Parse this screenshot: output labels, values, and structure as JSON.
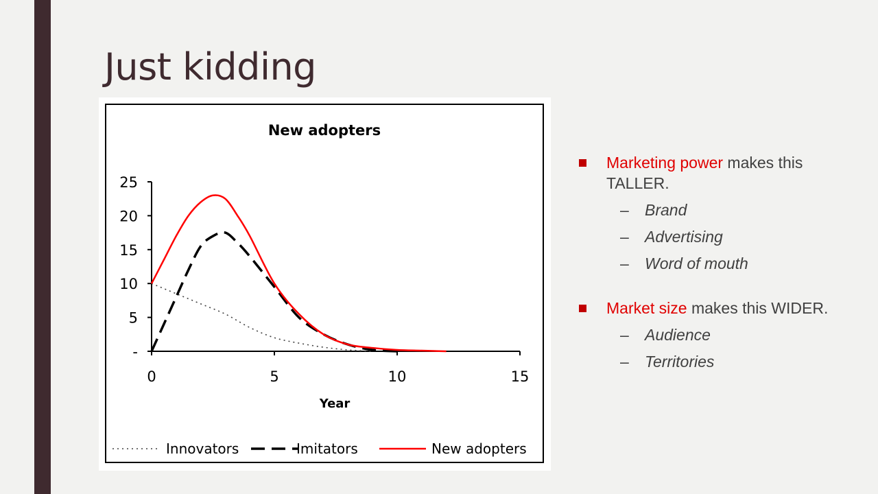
{
  "slide": {
    "title": "Just kidding"
  },
  "chart_data": {
    "type": "line",
    "title": "New adopters",
    "xlabel": "Year",
    "ylabel": "",
    "xlim": [
      0,
      15
    ],
    "ylim": [
      0,
      25
    ],
    "x_ticks": [
      "0",
      "5",
      "10",
      "15"
    ],
    "y_ticks": [
      "-",
      "5",
      "10",
      "15",
      "20",
      "25"
    ],
    "grid": false,
    "legend": "bottom",
    "series": [
      {
        "name": "Innovators",
        "style": "dotted",
        "color": "#404040",
        "x": [
          0,
          1,
          2,
          3,
          4,
          5,
          6,
          7,
          8,
          9
        ],
        "y": [
          10,
          8.5,
          7,
          5.5,
          3.5,
          2,
          1.2,
          0.6,
          0.2,
          0
        ]
      },
      {
        "name": "Imitators",
        "style": "dashed",
        "color": "#000000",
        "x": [
          0,
          0.5,
          1,
          1.5,
          2,
          2.5,
          3,
          3.5,
          4,
          5,
          6,
          7,
          8,
          9,
          10
        ],
        "y": [
          0,
          4,
          8,
          12,
          15.5,
          17,
          17.5,
          16,
          14,
          9.5,
          5,
          2.5,
          1,
          0.2,
          0
        ]
      },
      {
        "name": "New adopters",
        "style": "solid",
        "color": "#ff0000",
        "x": [
          0,
          0.5,
          1,
          1.5,
          2,
          2.5,
          3,
          3.5,
          4,
          5,
          6,
          7,
          8,
          9,
          10,
          11,
          12
        ],
        "y": [
          10,
          13.5,
          17,
          20,
          22,
          23,
          22.5,
          20,
          17,
          10,
          5.5,
          2.5,
          1,
          0.5,
          0.2,
          0.1,
          0
        ]
      }
    ]
  },
  "bullets": [
    {
      "highlight": "Marketing power",
      "text": " makes this TALLER.",
      "subs": [
        "Brand",
        "Advertising",
        "Word of mouth"
      ]
    },
    {
      "highlight": "Market size",
      "text": " makes this WIDER.",
      "subs": [
        "Audience",
        "Territories"
      ]
    }
  ],
  "colors": {
    "accent": "#c00000",
    "highlight": "#e00000",
    "bar": "#3f2a2f",
    "background": "#f2f2f0"
  }
}
